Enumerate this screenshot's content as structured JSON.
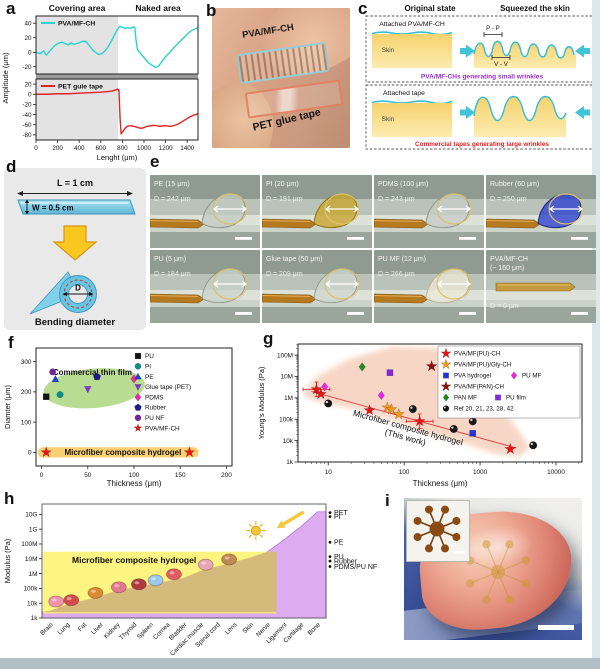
{
  "labels": {
    "a": "a",
    "b": "b",
    "c": "c",
    "d": "d",
    "e": "e",
    "f": "f",
    "g": "g",
    "h": "h",
    "i": "i"
  },
  "panel_b": {
    "film1_label": "PVA/MF-CH",
    "film2_label": "PET glue tape"
  },
  "panel_c": {
    "header_left": "Original state",
    "header_right": "Squeezed the skin",
    "box1": {
      "attached": "Attached PVA/MF-CH",
      "skin": "Skin",
      "peak_label": "P - P",
      "valley_label": "V - V",
      "caption": "PVA/MF-CHs generating small wrinkles",
      "caption_color": "#9a2fd0"
    },
    "box2": {
      "attached": "Attached tape",
      "skin": "Skin",
      "caption": "Commercial tapes generating large wrinkles",
      "caption_color": "#e42222"
    }
  },
  "panel_d": {
    "length_label": "L = 1 cm",
    "width_label": "W = 0.5 cm",
    "diameter_label": "D",
    "caption": "Bending diameter"
  },
  "panel_e": {
    "cells": [
      {
        "name": "PE (15 μm)",
        "name2": "",
        "d": "D = 242 μm",
        "loop": "#c2cbc2",
        "edge": "#86918a",
        "has_loop": true
      },
      {
        "name": "PI (20 μm)",
        "name2": "",
        "d": "D = 191 μm",
        "loop": "#c9a42a",
        "edge": "#8a6d10",
        "has_loop": true
      },
      {
        "name": "PDMS (100 μm)",
        "name2": "",
        "d": "D = 243 μm",
        "loop": "#c6cdc6",
        "edge": "#8a948c",
        "has_loop": true
      },
      {
        "name": "Rubber (60 μm)",
        "name2": "",
        "d": "D = 250 μm",
        "loop": "#2b3fd0",
        "edge": "#16247e",
        "has_loop": true
      },
      {
        "name": "PU (5 μm)",
        "name2": "",
        "d": "D = 184 μm",
        "loop": "#c9d2ca",
        "edge": "#8e9890",
        "has_loop": true
      },
      {
        "name": "Glue tape (50 μm)",
        "name2": "",
        "d": "D = 209 μm",
        "loop": "#cfd6cd",
        "edge": "#929c94",
        "has_loop": true
      },
      {
        "name": "PU MF (12 μm)",
        "name2": "",
        "d": "D = 266 μm",
        "loop": "#ece8d6",
        "edge": "#b6b298",
        "has_loop": true
      },
      {
        "name": "PVA/MF-CH",
        "name2": "(~ 160 μm)",
        "d": "D = 0 μm",
        "loop": "",
        "edge": "",
        "has_loop": false
      }
    ]
  },
  "chart_data": [
    {
      "id": "panel_a_amplitude_profiles",
      "type": "line",
      "xlabel": "Lenght (μm)",
      "ylabel": "Amplitude (μm)",
      "region_labels": [
        "Covering area",
        "Naked area"
      ],
      "covering_end_um": 760,
      "xlim": [
        0,
        1500
      ],
      "xticks": [
        0,
        200,
        400,
        600,
        800,
        1000,
        1200,
        1400
      ],
      "series": [
        {
          "name": "PVA/MF-CH",
          "color": "#29d3d3",
          "ylim": [
            -30,
            50
          ],
          "yticks": [
            40,
            20,
            0,
            -20
          ],
          "points": [
            [
              0,
              0
            ],
            [
              40,
              -2
            ],
            [
              70,
              2
            ],
            [
              95,
              -4
            ],
            [
              130,
              2
            ],
            [
              165,
              8
            ],
            [
              200,
              12
            ],
            [
              240,
              14
            ],
            [
              270,
              12
            ],
            [
              300,
              10
            ],
            [
              325,
              13
            ],
            [
              350,
              11
            ],
            [
              375,
              12
            ],
            [
              400,
              13
            ],
            [
              430,
              15
            ],
            [
              460,
              15
            ],
            [
              490,
              10
            ],
            [
              520,
              4
            ],
            [
              550,
              0
            ],
            [
              580,
              -3
            ],
            [
              610,
              -2
            ],
            [
              640,
              2
            ],
            [
              670,
              8
            ],
            [
              700,
              16
            ],
            [
              730,
              25
            ],
            [
              760,
              33
            ],
            [
              780,
              36
            ],
            [
              800,
              34
            ],
            [
              825,
              33
            ],
            [
              850,
              34
            ],
            [
              875,
              33
            ],
            [
              900,
              35
            ],
            [
              915,
              34
            ],
            [
              925,
              18
            ],
            [
              940,
              3
            ],
            [
              960,
              0
            ],
            [
              985,
              -5
            ],
            [
              1015,
              -10
            ],
            [
              1045,
              -15
            ],
            [
              1075,
              -18
            ],
            [
              1105,
              -21
            ],
            [
              1135,
              -19
            ],
            [
              1165,
              -13
            ],
            [
              1200,
              -6
            ],
            [
              1240,
              0
            ],
            [
              1280,
              7
            ],
            [
              1320,
              13
            ],
            [
              1360,
              19
            ],
            [
              1400,
              25
            ],
            [
              1440,
              30
            ],
            [
              1500,
              34
            ]
          ]
        },
        {
          "name": "PET gule tape",
          "color": "#e42222",
          "ylim": [
            -90,
            30
          ],
          "yticks": [
            20,
            0,
            -20,
            -40,
            -60,
            -80
          ],
          "points": [
            [
              0,
              0
            ],
            [
              100,
              0
            ],
            [
              200,
              1
            ],
            [
              300,
              1
            ],
            [
              400,
              2
            ],
            [
              500,
              3
            ],
            [
              600,
              4
            ],
            [
              650,
              5
            ],
            [
              700,
              6
            ],
            [
              730,
              8
            ],
            [
              755,
              10
            ],
            [
              768,
              8
            ],
            [
              778,
              -45
            ],
            [
              788,
              -78
            ],
            [
              805,
              -73
            ],
            [
              825,
              -67
            ],
            [
              845,
              -63
            ],
            [
              865,
              -62
            ],
            [
              885,
              -62
            ],
            [
              905,
              -63
            ],
            [
              925,
              -64
            ],
            [
              950,
              -66
            ],
            [
              980,
              -67
            ],
            [
              1005,
              -65
            ],
            [
              1030,
              -63
            ],
            [
              1060,
              -62
            ],
            [
              1090,
              -61
            ],
            [
              1120,
              -62
            ],
            [
              1150,
              -63
            ],
            [
              1180,
              -62
            ],
            [
              1210,
              -62
            ],
            [
              1240,
              -63
            ],
            [
              1270,
              -62
            ],
            [
              1300,
              -60
            ],
            [
              1330,
              -57
            ],
            [
              1360,
              -53
            ],
            [
              1390,
              -49
            ],
            [
              1420,
              -45
            ],
            [
              1450,
              -42
            ],
            [
              1480,
              -40
            ],
            [
              1500,
              -38
            ]
          ]
        }
      ]
    },
    {
      "id": "panel_f_diameter_vs_thickness",
      "type": "scatter",
      "xlabel": "Thickness (μm)",
      "ylabel": "Diamter (μm)",
      "xlim": [
        -6,
        206
      ],
      "ylim": [
        -45,
        345
      ],
      "xticks": [
        0,
        50,
        100,
        150,
        200
      ],
      "yticks": [
        0,
        100,
        200,
        300
      ],
      "annotations": {
        "film_region": "Commercial thin film",
        "hydrogel_band": "Microfiber composite hydrogel"
      },
      "series": [
        {
          "name": "PU",
          "marker": "square",
          "color": "#111111",
          "points": [
            [
              5,
              184
            ]
          ]
        },
        {
          "name": "PI",
          "marker": "circle",
          "color": "#0e8f86",
          "points": [
            [
              20,
              191
            ]
          ]
        },
        {
          "name": "PE",
          "marker": "triangle",
          "color": "#1d3fd8",
          "points": [
            [
              15,
              242
            ]
          ]
        },
        {
          "name": "Glue tape (PET)",
          "marker": "triangle-down",
          "color": "#8436e0",
          "points": [
            [
              50,
              209
            ]
          ]
        },
        {
          "name": "PDMS",
          "marker": "diamond",
          "color": "#ee2a9e",
          "points": [
            [
              100,
              243
            ]
          ]
        },
        {
          "name": "Rubber",
          "marker": "pentagon",
          "color": "#1b1b8e",
          "points": [
            [
              60,
              250
            ]
          ]
        },
        {
          "name": "PU NF",
          "marker": "circle",
          "color": "#7c1fa2",
          "points": [
            [
              12,
              266
            ]
          ]
        },
        {
          "name": "PVA/MF-CH",
          "marker": "star",
          "color": "#e81515",
          "points": [
            [
              5,
              0
            ],
            [
              160,
              0
            ]
          ]
        }
      ]
    },
    {
      "id": "panel_g_modulus_vs_thickness",
      "type": "scatter",
      "xscale": "log",
      "yscale": "log",
      "xlabel": "Thickness (μm)",
      "ylabel": "Young's Modulus (Pa)",
      "xlim": [
        4,
        22000
      ],
      "ylim": [
        1000,
        330000000
      ],
      "xticks": [
        {
          "v": 10,
          "label": "10"
        },
        {
          "v": 100,
          "label": "100"
        },
        {
          "v": 1000,
          "label": "1000"
        },
        {
          "v": 10000,
          "label": "10000"
        }
      ],
      "yticks": [
        {
          "v": 1000,
          "label": "1k"
        },
        {
          "v": 10000,
          "label": "10k"
        },
        {
          "v": 100000,
          "label": "100k"
        },
        {
          "v": 1000000,
          "label": "1M"
        },
        {
          "v": 10000000,
          "label": "10M"
        },
        {
          "v": 100000000,
          "label": "100M"
        }
      ],
      "trend_label_line1": "Microfiber composite hydrogel",
      "trend_label_line2": "(This work)",
      "series": [
        {
          "name": "PVA/MF(PU)-CH",
          "marker": "star",
          "color": "#e81515",
          "err": [
            0,
            3
          ],
          "points": [
            [
              7,
              2500000
            ],
            [
              8,
              1500000
            ],
            [
              35,
              260000
            ],
            [
              160,
              80000
            ],
            [
              2500,
              4000
            ]
          ]
        },
        {
          "name": "PVA/MF(PU)/Gly-CH",
          "marker": "star",
          "color": "#f59a18",
          "points": [
            [
              60,
              350000
            ],
            [
              68,
              290000
            ],
            [
              85,
              170000
            ]
          ]
        },
        {
          "name": "PVA hydrogel",
          "marker": "square",
          "color": "#2233dd",
          "points": [
            [
              800,
              22000
            ]
          ]
        },
        {
          "name": "PU MF",
          "marker": "diamond",
          "color": "#ee22ee",
          "points": [
            [
              9,
              3300000
            ],
            [
              50,
              1300000
            ]
          ]
        },
        {
          "name": "PVA/MF(PAN)-CH",
          "marker": "star",
          "color": "#8c1010",
          "points": [
            [
              230,
              30000000
            ]
          ]
        },
        {
          "name": "PAN MF",
          "marker": "diamond",
          "color": "#1f8c1f",
          "points": [
            [
              28,
              28000000
            ]
          ]
        },
        {
          "name": "PU film",
          "marker": "square",
          "color": "#8426e0",
          "points": [
            [
              65,
              15000000
            ]
          ]
        },
        {
          "name": "Ref 20, 21, 23, 28, 42",
          "marker": "sphere",
          "color": "#171717",
          "points": [
            [
              10,
              550000
            ],
            [
              130,
              300000
            ],
            [
              480,
              5000000
            ],
            [
              450,
              35000
            ],
            [
              800,
              80000
            ],
            [
              5000,
              6000
            ]
          ]
        }
      ],
      "legend_rows": [
        [
          0
        ],
        [
          1
        ],
        [
          2,
          3
        ],
        [
          4
        ],
        [
          5,
          6
        ],
        [
          7
        ]
      ]
    },
    {
      "id": "panel_h_tissue_modulus",
      "type": "area",
      "yscale": "log",
      "ylabel": "Modulus (Pa)",
      "yticks": [
        {
          "v": 1000,
          "label": "1k"
        },
        {
          "v": 10000,
          "label": "10k"
        },
        {
          "v": 100000,
          "label": "100k"
        },
        {
          "v": 1000000,
          "label": "1M"
        },
        {
          "v": 10000000,
          "label": "10M"
        },
        {
          "v": 100000000,
          "label": "100M"
        },
        {
          "v": 1000000000,
          "label": "1G"
        },
        {
          "v": 10000000000,
          "label": "10G"
        }
      ],
      "categories": [
        "Brain",
        "Lung",
        "Fat",
        "Liver",
        "Kidney",
        "Thyroid",
        "Spleen",
        "Cornea",
        "Bladder",
        "Cardiac muscle",
        "Spinal cord",
        "Lens",
        "Skin",
        "Nerve",
        "Ligament",
        "Cartilage",
        "Bone"
      ],
      "tissue_modulus": [
        3000,
        8000,
        15000,
        30000,
        70000,
        110000,
        180000,
        300000,
        500000,
        1500000,
        3000000,
        6000000,
        12000000,
        30000000
      ],
      "envelope_modulus": [
        3000,
        8000,
        15000,
        30000,
        70000,
        110000,
        180000,
        300000,
        500000,
        1500000,
        3000000,
        6000000,
        12000000,
        30000000,
        200000000,
        1500000000,
        15000000000
      ],
      "band_label": "Microfiber composite hydrogel",
      "band_range": [
        2000,
        30000000
      ],
      "materials": [
        {
          "name": "PET",
          "v": 13000000000
        },
        {
          "name": "PI",
          "v": 7000000000
        },
        {
          "name": "PE",
          "v": 130000000
        },
        {
          "name": "PU",
          "v": 14000000
        },
        {
          "name": "Rubber",
          "v": 7000000
        },
        {
          "name": "PDMS/PU NF",
          "v": 3000000
        }
      ],
      "organs": [
        {
          "name": "brain-icon",
          "c": 0.35,
          "v": 13000,
          "color": "#ef93ae"
        },
        {
          "name": "lung-icon",
          "c": 1.25,
          "v": 16000,
          "color": "#d64c4c"
        },
        {
          "name": "liver-icon",
          "c": 2.7,
          "v": 50000,
          "color": "#dd8a33"
        },
        {
          "name": "kidney-icon",
          "c": 4.1,
          "v": 120000,
          "color": "#e2798c"
        },
        {
          "name": "spleen-icon",
          "c": 5.3,
          "v": 190000,
          "color": "#b03a44"
        },
        {
          "name": "cornea-icon",
          "c": 6.3,
          "v": 350000,
          "color": "#9cc8ee"
        },
        {
          "name": "heart-icon",
          "c": 7.4,
          "v": 900000,
          "color": "#e25a62"
        },
        {
          "name": "spinal-cord-icon",
          "c": 9.3,
          "v": 4000000,
          "color": "#e8a7b4"
        },
        {
          "name": "skin-icon",
          "c": 10.7,
          "v": 9000000,
          "color": "#c08a52"
        },
        {
          "name": "sun-icon",
          "c": 12.3,
          "v": 800000000,
          "color": "#f5c832"
        }
      ]
    }
  ]
}
